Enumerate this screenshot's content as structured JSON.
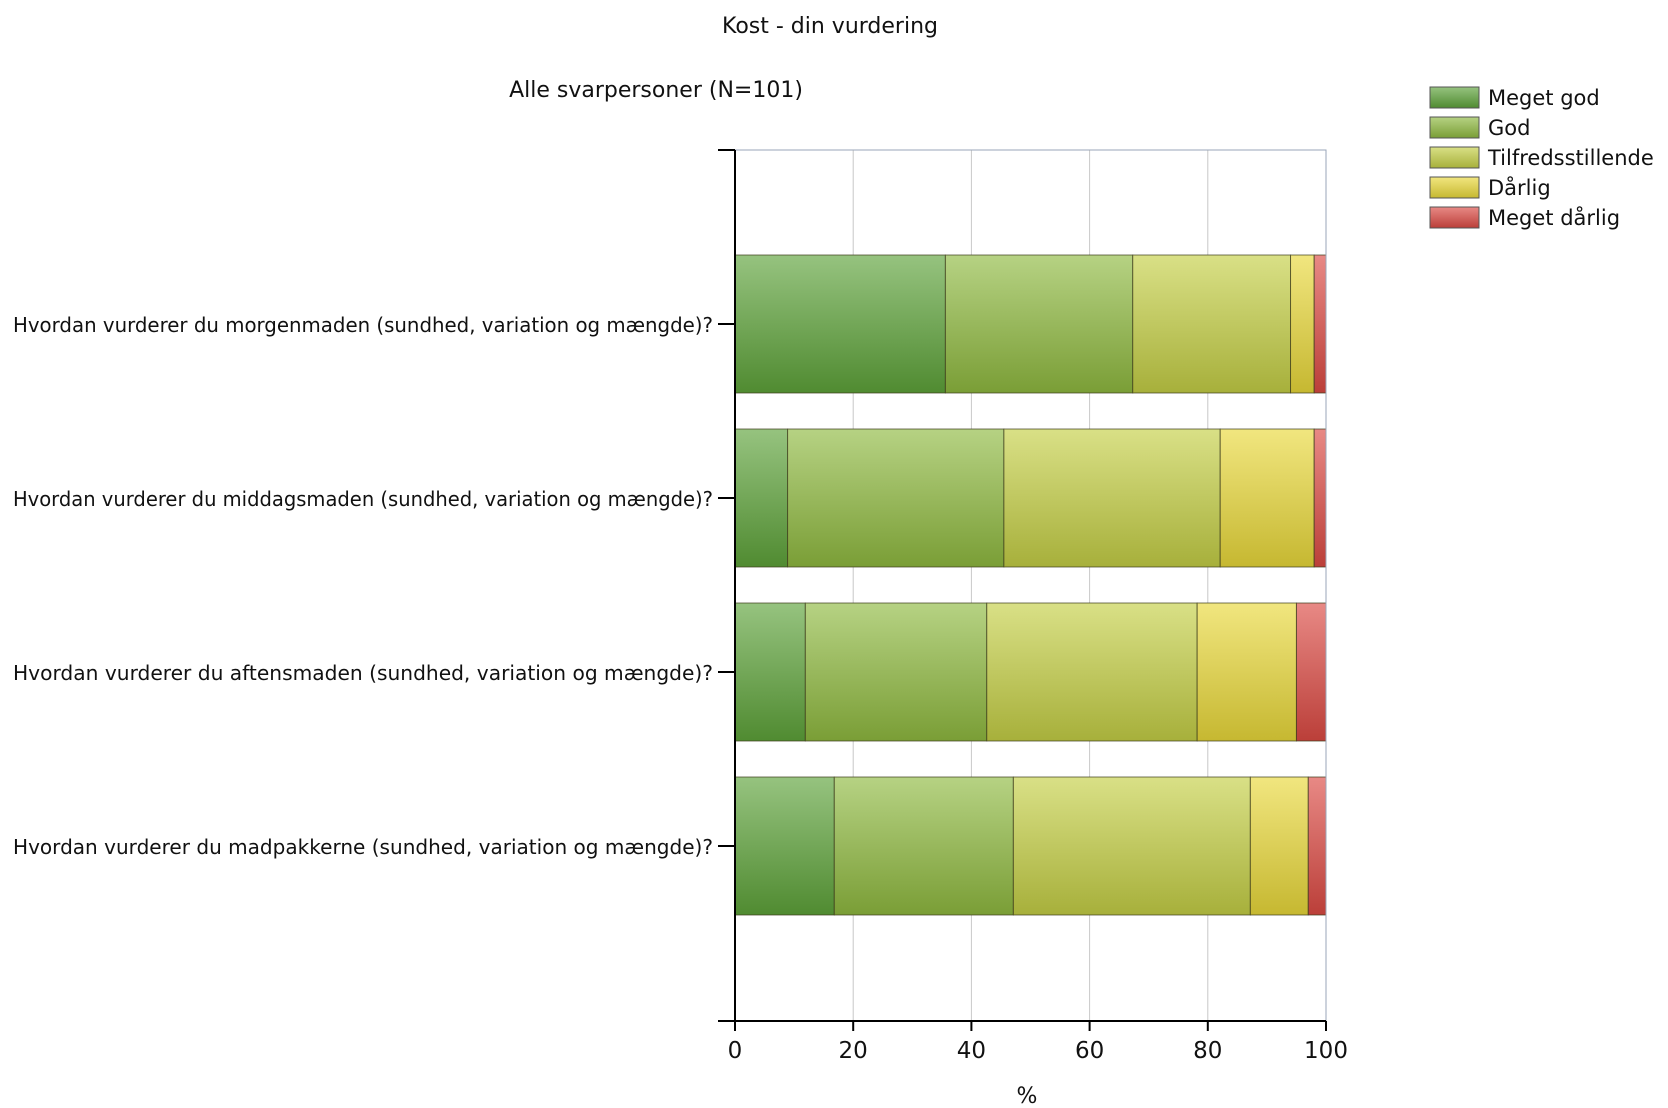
{
  "chart_data": {
    "type": "bar",
    "orientation": "horizontal",
    "stacked": true,
    "title": "Kost - din vurdering",
    "subtitle": "Alle svarpersoner (N=101)",
    "xlabel": "%",
    "ylabel": "",
    "xlim": [
      0,
      100
    ],
    "x_ticks": [
      "0",
      "20",
      "40",
      "60",
      "80",
      "100"
    ],
    "grid": true,
    "legend_position": "top-right",
    "categories": [
      "Hvordan vurderer du morgenmaden (sundhed, variation og mængde)?",
      "Hvordan vurderer du middagsmaden (sundhed, variation og mængde)?",
      "Hvordan vurderer du aftensmaden (sundhed, variation og mængde)?",
      "Hvordan vurderer du madpakkerne (sundhed, variation og mængde)?"
    ],
    "series": [
      {
        "name": "Meget god",
        "color": "#5ea33a",
        "values": [
          35.6,
          8.9,
          11.9,
          16.8
        ]
      },
      {
        "name": "God",
        "color": "#8fba40",
        "values": [
          31.7,
          36.6,
          30.7,
          30.3
        ]
      },
      {
        "name": "Tilfredsstillende",
        "color": "#c4cf45",
        "values": [
          26.7,
          36.6,
          35.6,
          40.1
        ]
      },
      {
        "name": "Dårlig",
        "color": "#e9d83a",
        "values": [
          4.0,
          15.9,
          16.8,
          9.8
        ]
      },
      {
        "name": "Meget dårlig",
        "color": "#dc4a43",
        "values": [
          2.0,
          2.0,
          5.0,
          3.0
        ]
      }
    ]
  }
}
